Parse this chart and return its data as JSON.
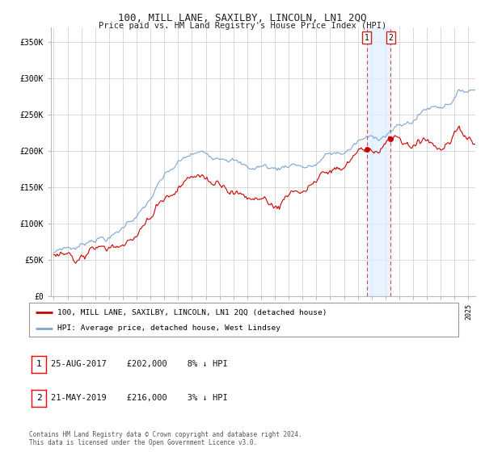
{
  "title": "100, MILL LANE, SAXILBY, LINCOLN, LN1 2QQ",
  "subtitle": "Price paid vs. HM Land Registry's House Price Index (HPI)",
  "ylabel_ticks": [
    "£0",
    "£50K",
    "£100K",
    "£150K",
    "£200K",
    "£250K",
    "£300K",
    "£350K"
  ],
  "ytick_values": [
    0,
    50000,
    100000,
    150000,
    200000,
    250000,
    300000,
    350000
  ],
  "ylim": [
    0,
    370000
  ],
  "xlim_start": 1994.8,
  "xlim_end": 2025.5,
  "sale1_date": 2017.65,
  "sale1_price": 202000,
  "sale1_hpi": 219000,
  "sale2_date": 2019.38,
  "sale2_price": 216000,
  "sale2_hpi": 222000,
  "legend_line1": "100, MILL LANE, SAXILBY, LINCOLN, LN1 2QQ (detached house)",
  "legend_line2": "HPI: Average price, detached house, West Lindsey",
  "table_row1": [
    "1",
    "25-AUG-2017",
    "£202,000",
    "8% ↓ HPI"
  ],
  "table_row2": [
    "2",
    "21-MAY-2019",
    "£216,000",
    "3% ↓ HPI"
  ],
  "footer": "Contains HM Land Registry data © Crown copyright and database right 2024.\nThis data is licensed under the Open Government Licence v3.0.",
  "hpi_color": "#7ba7d4",
  "sale_color": "#cc0000",
  "dashed_line_color": "#dd4444",
  "shade_color": "#ddeeff",
  "background_color": "#ffffff",
  "grid_color": "#cccccc"
}
